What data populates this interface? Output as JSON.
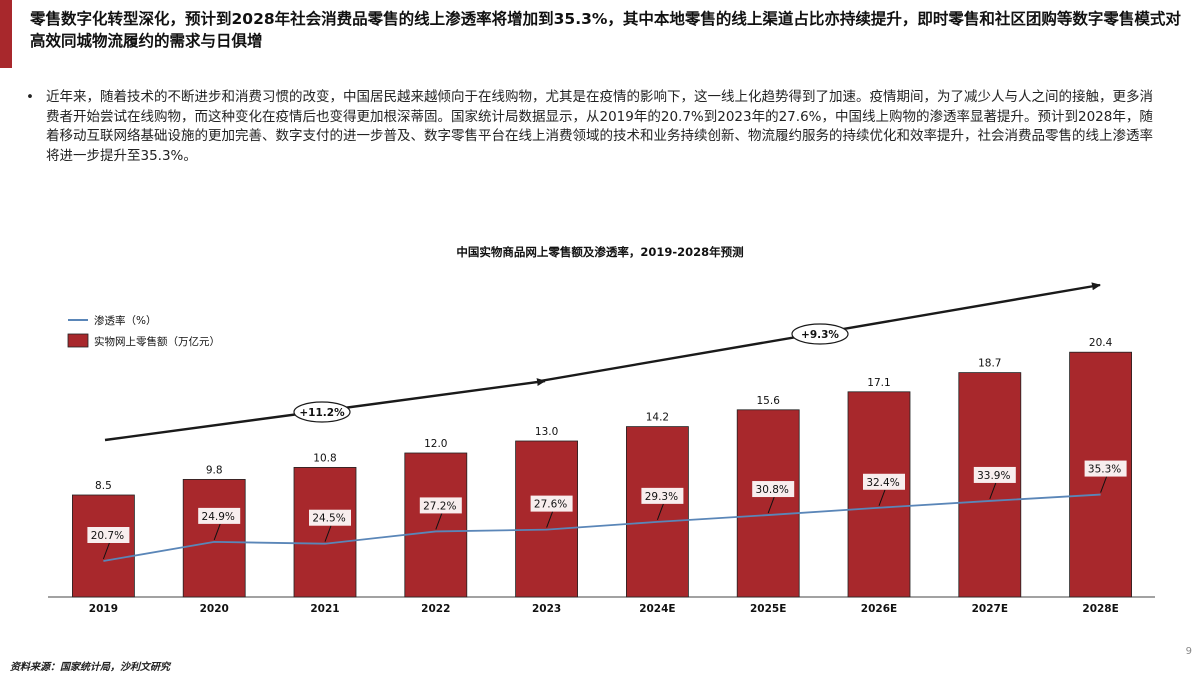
{
  "page": {
    "headline": "零售数字化转型深化，预计到2028年社会消费品零售的线上渗透率将增加到35.3%，其中本地零售的线上渠道占比亦持续提升，即时零售和社区团购等数字零售模式对高效同城物流履约的需求与日俱增",
    "bullet_symbol": "•",
    "bullet_text": "近年来，随着技术的不断进步和消费习惯的改变，中国居民越来越倾向于在线购物，尤其是在疫情的影响下，这一线上化趋势得到了加速。疫情期间，为了减少人与人之间的接触，更多消费者开始尝试在线购物，而这种变化在疫情后也变得更加根深蒂固。国家统计局数据显示，从2019年的20.7%到2023年的27.6%，中国线上购物的渗透率显著提升。预计到2028年，随着移动互联网络基础设施的更加完善、数字支付的进一步普及、数字零售平台在线上消费领域的技术和业务持续创新、物流履约服务的持续优化和效率提升，社会消费品零售的线上渗透率将进一步提升至35.3%。",
    "source": "资料来源：国家统计局，沙利文研究",
    "page_number": "9"
  },
  "colors": {
    "accent": "#a8282c",
    "bar": "#a8282c",
    "line": "#5a86b8"
  },
  "chart_data": {
    "type": "bar",
    "title": "中国实物商品网上零售额及渗透率，2019-2028年预测",
    "categories": [
      "2019",
      "2020",
      "2021",
      "2022",
      "2023",
      "2024E",
      "2025E",
      "2026E",
      "2027E",
      "2028E"
    ],
    "series": [
      {
        "name": "实物网上零售额（万亿元）",
        "type": "bar",
        "values": [
          8.5,
          9.8,
          10.8,
          12.0,
          13.0,
          14.2,
          15.6,
          17.1,
          18.7,
          20.4
        ],
        "labels": [
          "8.5",
          "9.8",
          "10.8",
          "12.0",
          "13.0",
          "14.2",
          "15.6",
          "17.1",
          "18.7",
          "20.4"
        ]
      },
      {
        "name": "渗透率（%）",
        "type": "line",
        "values": [
          20.7,
          24.9,
          24.5,
          27.2,
          27.6,
          29.3,
          30.8,
          32.4,
          33.9,
          35.3
        ],
        "labels": [
          "20.7%",
          "24.9%",
          "24.5%",
          "27.2%",
          "27.6%",
          "29.3%",
          "30.8%",
          "32.4%",
          "33.9%",
          "35.3%"
        ]
      }
    ],
    "cagr_annotations": [
      "+11.2%",
      "+9.3%"
    ],
    "legend_position": "top-left",
    "grid": false
  }
}
